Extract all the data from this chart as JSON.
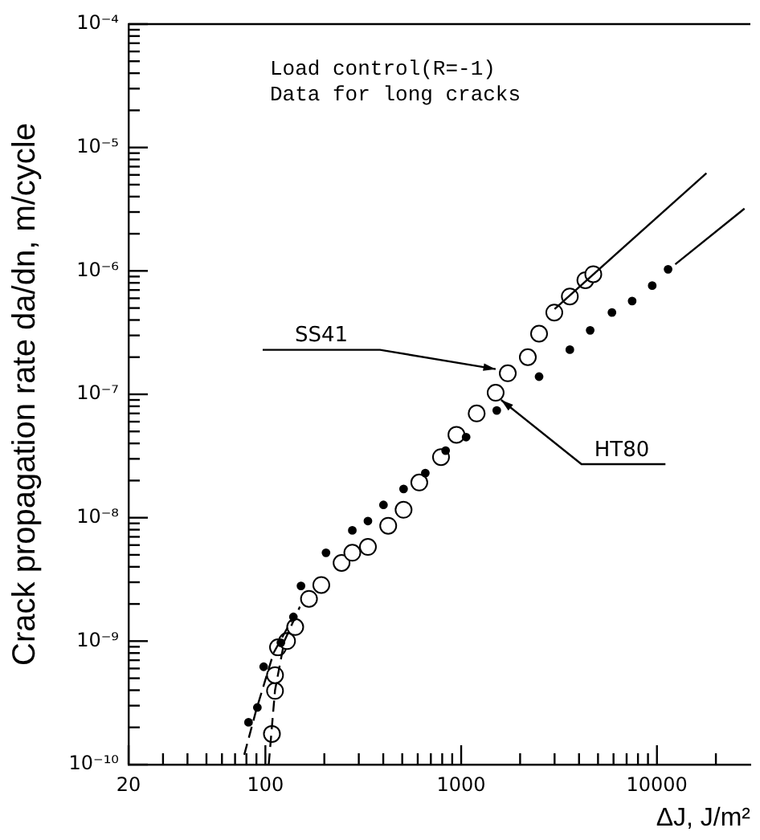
{
  "chart_data": {
    "type": "scatter",
    "xlabel": "ΔJ, J/m²",
    "ylabel": "Crack propagation rate da/dn, m/cycle",
    "log": "xy",
    "xlim": [
      20,
      30000
    ],
    "ylim": [
      1e-10,
      0.0001
    ],
    "xticks": [
      20,
      {
        "value": 30,
        "label": null
      },
      {
        "value": 40,
        "label": null
      },
      {
        "value": 50,
        "label": null
      },
      {
        "value": 60,
        "label": null
      },
      {
        "value": 70,
        "label": null
      },
      {
        "value": 80,
        "label": null
      },
      {
        "value": 90,
        "label": null
      },
      100,
      {
        "value": 200,
        "label": null
      },
      {
        "value": 300,
        "label": null
      },
      {
        "value": 400,
        "label": null
      },
      {
        "value": 500,
        "label": null
      },
      {
        "value": 600,
        "label": null
      },
      {
        "value": 700,
        "label": null
      },
      {
        "value": 800,
        "label": null
      },
      {
        "value": 900,
        "label": null
      },
      1000,
      {
        "value": 2000,
        "label": null
      },
      {
        "value": 3000,
        "label": null
      },
      {
        "value": 4000,
        "label": null
      },
      {
        "value": 5000,
        "label": null
      },
      {
        "value": 6000,
        "label": null
      },
      {
        "value": 7000,
        "label": null
      },
      {
        "value": 8000,
        "label": null
      },
      {
        "value": 9000,
        "label": null
      },
      10000,
      {
        "value": 20000,
        "label": null
      }
    ],
    "yticks": [
      {
        "value": 1e-10,
        "label": "10⁻¹⁰"
      },
      {
        "value": 2e-10,
        "label": null
      },
      {
        "value": 3e-10,
        "label": null
      },
      {
        "value": 4e-10,
        "label": null
      },
      {
        "value": 5e-10,
        "label": null
      },
      {
        "value": 6e-10,
        "label": null
      },
      {
        "value": 7e-10,
        "label": null
      },
      {
        "value": 8e-10,
        "label": null
      },
      {
        "value": 9e-10,
        "label": null
      },
      {
        "value": 1e-09,
        "label": "10⁻⁹"
      },
      {
        "value": 2e-09,
        "label": null
      },
      {
        "value": 3e-09,
        "label": null
      },
      {
        "value": 4e-09,
        "label": null
      },
      {
        "value": 5e-09,
        "label": null
      },
      {
        "value": 6e-09,
        "label": null
      },
      {
        "value": 7e-09,
        "label": null
      },
      {
        "value": 8e-09,
        "label": null
      },
      {
        "value": 9e-09,
        "label": null
      },
      {
        "value": 1e-08,
        "label": "10⁻⁸"
      },
      {
        "value": 2e-08,
        "label": null
      },
      {
        "value": 3e-08,
        "label": null
      },
      {
        "value": 4e-08,
        "label": null
      },
      {
        "value": 5e-08,
        "label": null
      },
      {
        "value": 6e-08,
        "label": null
      },
      {
        "value": 7e-08,
        "label": null
      },
      {
        "value": 8e-08,
        "label": null
      },
      {
        "value": 9e-08,
        "label": null
      },
      {
        "value": 1e-07,
        "label": "10⁻⁷"
      },
      {
        "value": 2e-07,
        "label": null
      },
      {
        "value": 3e-07,
        "label": null
      },
      {
        "value": 4e-07,
        "label": null
      },
      {
        "value": 5e-07,
        "label": null
      },
      {
        "value": 6e-07,
        "label": null
      },
      {
        "value": 7e-07,
        "label": null
      },
      {
        "value": 8e-07,
        "label": null
      },
      {
        "value": 9e-07,
        "label": null
      },
      {
        "value": 1e-06,
        "label": "10⁻⁶"
      },
      {
        "value": 2e-06,
        "label": null
      },
      {
        "value": 3e-06,
        "label": null
      },
      {
        "value": 4e-06,
        "label": null
      },
      {
        "value": 5e-06,
        "label": null
      },
      {
        "value": 6e-06,
        "label": null
      },
      {
        "value": 7e-06,
        "label": null
      },
      {
        "value": 8e-06,
        "label": null
      },
      {
        "value": 9e-06,
        "label": null
      },
      {
        "value": 1e-05,
        "label": "10⁻⁵"
      },
      {
        "value": 2e-05,
        "label": null
      },
      {
        "value": 3e-05,
        "label": null
      },
      {
        "value": 4e-05,
        "label": null
      },
      {
        "value": 5e-05,
        "label": null
      },
      {
        "value": 6e-05,
        "label": null
      },
      {
        "value": 7e-05,
        "label": null
      },
      {
        "value": 8e-05,
        "label": null
      },
      {
        "value": 9e-05,
        "label": null
      },
      {
        "value": 0.0001,
        "label": "10⁻⁴"
      }
    ],
    "series": [
      {
        "type": "line",
        "marker": "none",
        "line_style": "solid",
        "color": "#000000",
        "x": [
          3000,
          17900
        ],
        "values": [
          4.9e-07,
          6.2e-06
        ]
      },
      {
        "type": "line",
        "marker": "none",
        "line_style": "solid",
        "color": "#000000",
        "x": [
          12400,
          28000
        ],
        "values": [
          1.13e-06,
          3.2e-06
        ]
      },
      {
        "type": "line",
        "marker": "none",
        "line_style": "dashed",
        "color": "#000000",
        "x": [
          104,
          112,
          125,
          150
        ],
        "values": [
          1e-10,
          4e-10,
          1e-09,
          1.9e-09
        ]
      },
      {
        "type": "line",
        "marker": "none",
        "line_style": "dashed",
        "color": "#000000",
        "x": [
          78,
          90,
          110,
          140
        ],
        "values": [
          1.2e-10,
          2.8e-10,
          8e-10,
          1.6e-09
        ]
      },
      {
        "marker": "circle",
        "color": "#000000",
        "x": [
          108,
          112,
          112,
          116,
          129,
          142,
          167,
          193,
          245,
          278,
          334,
          424,
          508,
          611,
          789,
          946,
          1200,
          1500,
          1730,
          2190,
          2500,
          2990,
          3590,
          4310,
          4730
        ],
        "values": [
          1.77e-10,
          3.95e-10,
          5.3e-10,
          8.9e-10,
          1e-09,
          1.3e-09,
          2.2e-09,
          2.85e-09,
          4.3e-09,
          5.2e-09,
          5.8e-09,
          8.6e-09,
          1.16e-08,
          1.93e-08,
          3.1e-08,
          4.7e-08,
          7e-08,
          1.03e-07,
          1.48e-07,
          2e-07,
          3.1e-07,
          4.6e-07,
          6.2e-07,
          8.4e-07,
          9.4e-07
        ]
      },
      {
        "marker": "circle",
        "color": "#000000",
        "x": [
          82,
          91,
          98,
          120,
          139,
          152,
          204,
          278,
          334,
          401,
          508,
          656,
          833,
          1060,
          1520,
          2500,
          3590,
          4560,
          5890,
          7470,
          9460,
          11400
        ],
        "values": [
          2.2e-10,
          2.9e-10,
          6.2e-10,
          9.7e-10,
          1.57e-09,
          2.8e-09,
          5.2e-09,
          7.9e-09,
          9.4e-09,
          1.27e-08,
          1.71e-08,
          2.3e-08,
          3.5e-08,
          4.5e-08,
          7.4e-08,
          1.39e-07,
          2.3e-07,
          3.3e-07,
          4.6e-07,
          5.7e-07,
          7.6e-07,
          1.03e-06
        ]
      }
    ],
    "annotations": [
      "Load control(R=-1)",
      "Data for long cracks",
      {
        "text": "SS41",
        "x": 1500,
        "y": 1.6e-07
      },
      {
        "text": "HT80",
        "x": 1600,
        "y": 9e-08
      }
    ]
  }
}
